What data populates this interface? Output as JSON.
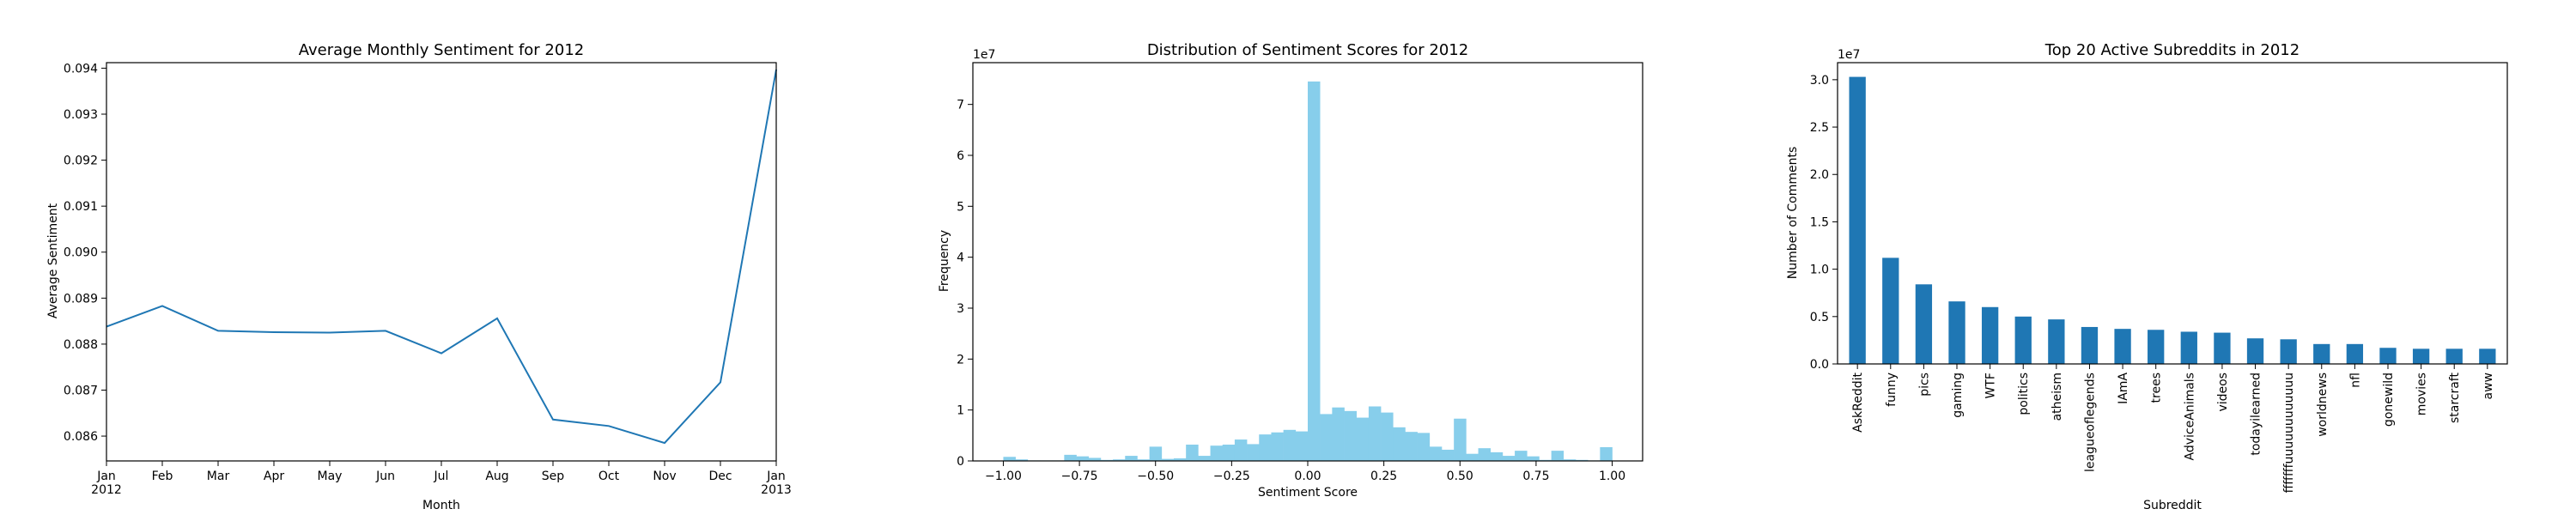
{
  "chart_data": [
    {
      "type": "line",
      "title": "Average Monthly Sentiment for 2012",
      "xlabel": "Month",
      "ylabel": "Average Sentiment",
      "x_ticks": [
        {
          "l1": "Jan",
          "l2": "2012"
        },
        {
          "l1": "Feb",
          "l2": ""
        },
        {
          "l1": "Mar",
          "l2": ""
        },
        {
          "l1": "Apr",
          "l2": ""
        },
        {
          "l1": "May",
          "l2": ""
        },
        {
          "l1": "Jun",
          "l2": ""
        },
        {
          "l1": "Jul",
          "l2": ""
        },
        {
          "l1": "Aug",
          "l2": ""
        },
        {
          "l1": "Sep",
          "l2": ""
        },
        {
          "l1": "Oct",
          "l2": ""
        },
        {
          "l1": "Nov",
          "l2": ""
        },
        {
          "l1": "Dec",
          "l2": ""
        },
        {
          "l1": "Jan",
          "l2": "2013"
        }
      ],
      "values": [
        0.08838,
        0.08883,
        0.08829,
        0.08826,
        0.08825,
        0.08829,
        0.0878,
        0.08856,
        0.08636,
        0.08622,
        0.08585,
        0.08717,
        0.09397
      ],
      "yticks": [
        "0.086",
        "0.087",
        "0.088",
        "0.089",
        "0.090",
        "0.091",
        "0.092",
        "0.093",
        "0.094"
      ],
      "ytick_values": [
        0.086,
        0.087,
        0.088,
        0.089,
        0.09,
        0.091,
        0.092,
        0.093,
        0.094
      ],
      "ylim": [
        0.08546,
        0.09412
      ],
      "color": "#1f77b4"
    },
    {
      "type": "bar",
      "title": "Distribution of Sentiment Scores for 2012",
      "xlabel": "Sentiment Score",
      "ylabel": "Frequency",
      "y_offset_label": "1e7",
      "bin_width": 0.04,
      "bin_starts": [
        -1.0,
        -0.96,
        -0.92,
        -0.88,
        -0.84,
        -0.8,
        -0.76,
        -0.72,
        -0.68,
        -0.64,
        -0.6,
        -0.56,
        -0.52,
        -0.48,
        -0.44,
        -0.4,
        -0.36,
        -0.32,
        -0.28,
        -0.24,
        -0.2,
        -0.16,
        -0.12,
        -0.08,
        -0.04,
        0.0,
        0.04,
        0.08,
        0.12,
        0.16,
        0.2,
        0.24,
        0.28,
        0.32,
        0.36,
        0.4,
        0.44,
        0.48,
        0.52,
        0.56,
        0.6,
        0.64,
        0.68,
        0.72,
        0.76,
        0.8,
        0.84,
        0.88,
        0.92,
        0.96
      ],
      "values": [
        0.08,
        0.03,
        0.01,
        0.01,
        0.01,
        0.12,
        0.09,
        0.06,
        0.02,
        0.03,
        0.1,
        0.03,
        0.28,
        0.04,
        0.05,
        0.32,
        0.1,
        0.3,
        0.32,
        0.42,
        0.33,
        0.52,
        0.56,
        0.61,
        0.58,
        7.45,
        0.92,
        1.05,
        0.98,
        0.85,
        1.07,
        0.95,
        0.66,
        0.57,
        0.55,
        0.28,
        0.22,
        0.83,
        0.14,
        0.25,
        0.17,
        0.1,
        0.2,
        0.09,
        0.02,
        0.2,
        0.03,
        0.02,
        0.01,
        0.27
      ],
      "xticks": [
        "−1.00",
        "−0.75",
        "−0.50",
        "−0.25",
        "0.00",
        "0.25",
        "0.50",
        "0.75",
        "1.00"
      ],
      "xtick_values": [
        -1.0,
        -0.75,
        -0.5,
        -0.25,
        0.0,
        0.25,
        0.5,
        0.75,
        1.0
      ],
      "yticks": [
        "0",
        "1",
        "2",
        "3",
        "4",
        "5",
        "6",
        "7"
      ],
      "ytick_values": [
        0,
        1,
        2,
        3,
        4,
        5,
        6,
        7
      ],
      "xlim": [
        -1.1,
        1.1
      ],
      "ylim": [
        0,
        7.82
      ],
      "color": "#87ceeb"
    },
    {
      "type": "bar",
      "title": "Top 20 Active Subreddits in 2012",
      "xlabel": "Subreddit",
      "ylabel": "Number of Comments",
      "y_offset_label": "1e7",
      "categories": [
        "AskReddit",
        "funny",
        "pics",
        "gaming",
        "WTF",
        "politics",
        "atheism",
        "leagueoflegends",
        "IAmA",
        "trees",
        "AdviceAnimals",
        "videos",
        "todayilearned",
        "fffffffuuuuuuuuuuuu",
        "worldnews",
        "nfl",
        "gonewild",
        "movies",
        "starcraft",
        "aww"
      ],
      "values": [
        3.03,
        1.12,
        0.84,
        0.66,
        0.6,
        0.5,
        0.47,
        0.39,
        0.37,
        0.36,
        0.34,
        0.33,
        0.27,
        0.26,
        0.21,
        0.21,
        0.17,
        0.16,
        0.16,
        0.16
      ],
      "yticks": [
        "0.0",
        "0.5",
        "1.0",
        "1.5",
        "2.0",
        "2.5",
        "3.0"
      ],
      "ytick_values": [
        0,
        0.5,
        1.0,
        1.5,
        2.0,
        2.5,
        3.0
      ],
      "ylim": [
        0,
        3.18
      ],
      "color": "#1f77b4"
    }
  ]
}
